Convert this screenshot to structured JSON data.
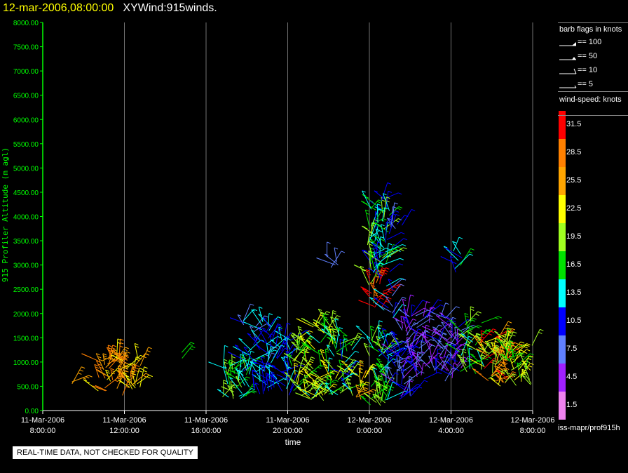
{
  "header": {
    "timestamp": "12-mar-2006,08:00:00",
    "title": "XYWind:915winds."
  },
  "chart_data": {
    "type": "scatter",
    "glyph": "wind-barb",
    "xlabel": "time",
    "ylabel": "915 Profiler Altitude (m agl)",
    "ylim": [
      0,
      8000
    ],
    "yticks": [
      "0.00",
      "500.00",
      "1000.00",
      "1500.00",
      "2000.00",
      "2500.00",
      "3000.00",
      "3500.00",
      "4000.00",
      "4500.00",
      "5000.00",
      "5500.00",
      "6000.00",
      "6500.00",
      "7000.00",
      "7500.00",
      "8000.00"
    ],
    "xlim_hours": [
      0,
      24
    ],
    "xticks": [
      {
        "date": "11-Mar-2006",
        "time": "8:00:00"
      },
      {
        "date": "11-Mar-2006",
        "time": "12:00:00"
      },
      {
        "date": "11-Mar-2006",
        "time": "16:00:00"
      },
      {
        "date": "11-Mar-2006",
        "time": "20:00:00"
      },
      {
        "date": "12-Mar-2006",
        "time": "0:00:00"
      },
      {
        "date": "12-Mar-2006",
        "time": "4:00:00"
      },
      {
        "date": "12-Mar-2006",
        "time": "8:00:00"
      }
    ],
    "grid": true,
    "axis_color": "#00ff00",
    "grid_color": "#ffffff",
    "clusters": [
      {
        "t0": 1.3,
        "t1": 1.5,
        "a0": 500,
        "a1": 800,
        "speed": [
          24,
          27
        ],
        "n": 2
      },
      {
        "t0": 2.5,
        "t1": 4.8,
        "a0": 300,
        "a1": 1100,
        "speed": [
          22,
          30
        ],
        "n": 55
      },
      {
        "t0": 6.8,
        "t1": 7.0,
        "a0": 900,
        "a1": 1200,
        "speed": [
          16,
          18
        ],
        "n": 2
      },
      {
        "t0": 8.8,
        "t1": 10.0,
        "a0": 200,
        "a1": 1000,
        "speed": [
          12,
          20
        ],
        "n": 35
      },
      {
        "t0": 9.8,
        "t1": 11.2,
        "a0": 300,
        "a1": 1900,
        "speed": [
          8,
          15
        ],
        "n": 55
      },
      {
        "t0": 11.0,
        "t1": 12.2,
        "a0": 300,
        "a1": 1500,
        "speed": [
          9,
          14
        ],
        "n": 45
      },
      {
        "t0": 12.2,
        "t1": 13.0,
        "a0": 300,
        "a1": 1500,
        "speed": [
          15,
          24
        ],
        "n": 30
      },
      {
        "t0": 13.0,
        "t1": 14.2,
        "a0": 200,
        "a1": 1900,
        "speed": [
          14,
          23
        ],
        "n": 55
      },
      {
        "t0": 14.2,
        "t1": 15.2,
        "a0": 300,
        "a1": 1600,
        "speed": [
          10,
          22
        ],
        "n": 40
      },
      {
        "t0": 15.2,
        "t1": 15.8,
        "a0": 200,
        "a1": 800,
        "speed": [
          22,
          26
        ],
        "n": 12
      },
      {
        "t0": 13.9,
        "t1": 14.5,
        "a0": 2900,
        "a1": 3200,
        "speed": [
          6,
          10
        ],
        "n": 5
      },
      {
        "t0": 15.9,
        "t1": 16.2,
        "a0": 2400,
        "a1": 3900,
        "speed": [
          13,
          20
        ],
        "n": 10
      },
      {
        "t0": 16.0,
        "t1": 16.7,
        "a0": 2100,
        "a1": 2700,
        "speed": [
          29,
          33
        ],
        "n": 14
      },
      {
        "t0": 16.0,
        "t1": 17.0,
        "a0": 2700,
        "a1": 4400,
        "speed": [
          9,
          20
        ],
        "n": 60
      },
      {
        "t0": 16.8,
        "t1": 17.6,
        "a0": 3300,
        "a1": 4000,
        "speed": [
          8,
          12
        ],
        "n": 10
      },
      {
        "t0": 16.5,
        "t1": 17.2,
        "a0": 1900,
        "a1": 2600,
        "speed": [
          6,
          14
        ],
        "n": 12
      },
      {
        "t0": 16.0,
        "t1": 16.9,
        "a0": 100,
        "a1": 1500,
        "speed": [
          12,
          20
        ],
        "n": 45
      },
      {
        "t0": 16.9,
        "t1": 18.1,
        "a0": 200,
        "a1": 1400,
        "speed": [
          5,
          12
        ],
        "n": 45
      },
      {
        "t0": 17.5,
        "t1": 20.5,
        "a0": 600,
        "a1": 2000,
        "speed": [
          3,
          12
        ],
        "n": 110
      },
      {
        "t0": 20.0,
        "t1": 20.6,
        "a0": 2800,
        "a1": 3300,
        "speed": [
          9,
          17
        ],
        "n": 8
      },
      {
        "t0": 20.4,
        "t1": 21.6,
        "a0": 700,
        "a1": 1900,
        "speed": [
          14,
          20
        ],
        "n": 30
      },
      {
        "t0": 21.4,
        "t1": 22.8,
        "a0": 500,
        "a1": 1500,
        "speed": [
          18,
          32
        ],
        "n": 50
      },
      {
        "t0": 22.6,
        "t1": 24.0,
        "a0": 500,
        "a1": 1400,
        "speed": [
          16,
          24
        ],
        "n": 35
      }
    ]
  },
  "legend": {
    "flags_title": "barb flags in knots",
    "flags": [
      {
        "label": "== 100"
      },
      {
        "label": "== 50"
      },
      {
        "label": "== 10"
      },
      {
        "label": "== 5"
      }
    ],
    "speed_title": "wind-speed: knots",
    "speed_bins": [
      {
        "label": "31.5",
        "color": "#ff0000"
      },
      {
        "label": "28.5",
        "color": "#ff8000"
      },
      {
        "label": "25.5",
        "color": "#ffa500"
      },
      {
        "label": "22.5",
        "color": "#ffff00"
      },
      {
        "label": "19.5",
        "color": "#a0ff20"
      },
      {
        "label": "16.5",
        "color": "#00e000"
      },
      {
        "label": "13.5",
        "color": "#00ffff"
      },
      {
        "label": "10.5",
        "color": "#0000ff"
      },
      {
        "label": "7.5",
        "color": "#6080ff"
      },
      {
        "label": "4.5",
        "color": "#a020ff"
      },
      {
        "label": "1.5",
        "color": "#ee82ee"
      }
    ]
  },
  "footer": {
    "source_path": "iss-mapr/prof915h",
    "quality_note": "REAL-TIME DATA, NOT CHECKED FOR QUALITY"
  }
}
